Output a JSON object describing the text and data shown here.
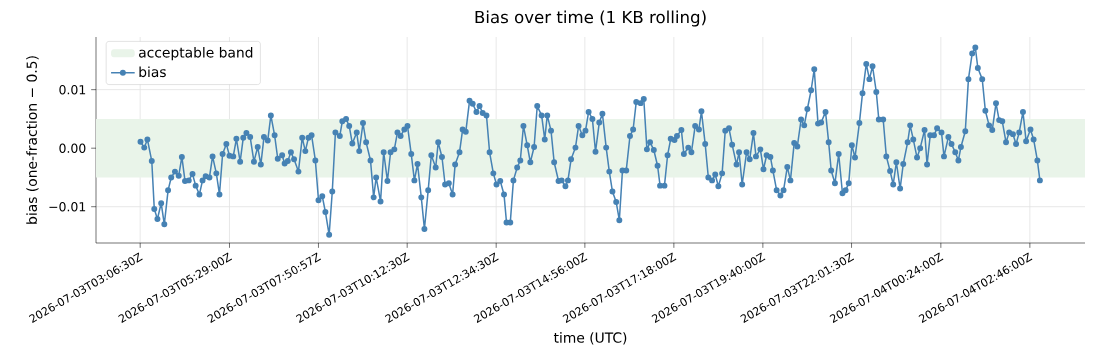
{
  "chart_data": {
    "type": "line",
    "title": "Bias over time (1 KB rolling)",
    "xlabel": "time (UTC)",
    "ylabel": "bias (one-fraction − 0.5)",
    "x": [
      "2026-07-03T03:07",
      "2026-07-03T03:13",
      "2026-07-03T03:18",
      "2026-07-03T03:25",
      "2026-07-03T03:29",
      "2026-07-03T03:34",
      "2026-07-03T03:40",
      "2026-07-03T03:45",
      "2026-07-03T03:51",
      "2026-07-03T03:56",
      "2026-07-03T04:02",
      "2026-07-03T04:08",
      "2026-07-03T04:13",
      "2026-07-03T04:18",
      "2026-07-03T04:24",
      "2026-07-03T04:30",
      "2026-07-03T04:35",
      "2026-07-03T04:41",
      "2026-07-03T04:46",
      "2026-07-03T04:51",
      "2026-07-03T04:57",
      "2026-07-03T05:02",
      "2026-07-03T05:08",
      "2026-07-03T05:13",
      "2026-07-03T05:18",
      "2026-07-03T05:24",
      "2026-07-03T05:29",
      "2026-07-03T05:35",
      "2026-07-03T05:40",
      "2026-07-03T05:46",
      "2026-07-03T05:51",
      "2026-07-03T05:56",
      "2026-07-03T06:02",
      "2026-07-03T06:08",
      "2026-07-03T06:14",
      "2026-07-03T06:19",
      "2026-07-03T06:24",
      "2026-07-03T06:30",
      "2026-07-03T06:35",
      "2026-07-03T06:41",
      "2026-07-03T06:46",
      "2026-07-03T06:53",
      "2026-07-03T06:57",
      "2026-07-03T07:02",
      "2026-07-03T07:07",
      "2026-07-03T07:12",
      "2026-07-03T07:19",
      "2026-07-03T07:25",
      "2026-07-03T07:30",
      "2026-07-03T07:35",
      "2026-07-03T07:40",
      "2026-07-03T07:46",
      "2026-07-03T07:51",
      "2026-07-03T07:57",
      "2026-07-03T08:02",
      "2026-07-03T08:08",
      "2026-07-03T08:13",
      "2026-07-03T08:18",
      "2026-07-03T08:25",
      "2026-07-03T08:29",
      "2026-07-03T08:35",
      "2026-07-03T08:40",
      "2026-07-03T08:45",
      "2026-07-03T08:52",
      "2026-07-03T08:56",
      "2026-07-03T09:02",
      "2026-07-03T09:07",
      "2026-07-03T09:14",
      "2026-07-03T09:19",
      "2026-07-03T09:23",
      "2026-07-03T09:30",
      "2026-07-03T09:35",
      "2026-07-03T09:41",
      "2026-07-03T09:46",
      "2026-07-03T09:52",
      "2026-07-03T09:57",
      "2026-07-03T10:02",
      "2026-07-03T10:08",
      "2026-07-03T10:13",
      "2026-07-03T10:19",
      "2026-07-03T10:24",
      "2026-07-03T10:29",
      "2026-07-03T10:35",
      "2026-07-03T10:40",
      "2026-07-03T10:46",
      "2026-07-03T10:51",
      "2026-07-03T10:58",
      "2026-07-03T11:02",
      "2026-07-03T11:08",
      "2026-07-03T11:13",
      "2026-07-03T11:19",
      "2026-07-03T11:25",
      "2026-07-03T11:29",
      "2026-07-03T11:36",
      "2026-07-03T11:41",
      "2026-07-03T11:46",
      "2026-07-03T11:52",
      "2026-07-03T11:57",
      "2026-07-03T12:03",
      "2026-07-03T12:08",
      "2026-07-03T12:13",
      "2026-07-03T12:19",
      "2026-07-03T12:24",
      "2026-07-03T12:30",
      "2026-07-03T12:35",
      "2026-07-03T12:41",
      "2026-07-03T12:47",
      "2026-07-03T12:51",
      "2026-07-03T12:57",
      "2026-07-03T13:02",
      "2026-07-03T13:08",
      "2026-07-03T13:13",
      "2026-07-03T13:18",
      "2026-07-03T13:24",
      "2026-07-03T13:29",
      "2026-07-03T13:35",
      "2026-07-03T13:40",
      "2026-07-03T13:47",
      "2026-07-03T13:52",
      "2026-07-03T13:56",
      "2026-07-03T14:02",
      "2026-07-03T14:07",
      "2026-07-03T14:14",
      "2026-07-03T14:19",
      "2026-07-03T14:25",
      "2026-07-03T14:29",
      "2026-07-03T14:34",
      "2026-07-03T14:41",
      "2026-07-03T14:46",
      "2026-07-03T14:52",
      "2026-07-03T14:57",
      "2026-07-03T15:02",
      "2026-07-03T15:08",
      "2026-07-03T15:13",
      "2026-07-03T15:19",
      "2026-07-03T15:24",
      "2026-07-03T15:30",
      "2026-07-03T15:35",
      "2026-07-03T15:40",
      "2026-07-03T15:46",
      "2026-07-03T15:51",
      "2026-07-03T15:56",
      "2026-07-03T16:02",
      "2026-07-03T16:08",
      "2026-07-03T16:13",
      "2026-07-03T16:18",
      "2026-07-03T16:25",
      "2026-07-03T16:30",
      "2026-07-03T16:35",
      "2026-07-03T16:40",
      "2026-07-03T16:46",
      "2026-07-03T16:52",
      "2026-07-03T16:56",
      "2026-07-03T17:03",
      "2026-07-03T17:08",
      "2026-07-03T17:13",
      "2026-07-03T17:19",
      "2026-07-03T17:23",
      "2026-07-03T17:30",
      "2026-07-03T17:34",
      "2026-07-03T17:41",
      "2026-07-03T17:46",
      "2026-07-03T17:52",
      "2026-07-03T17:58",
      "2026-07-03T18:02",
      "2026-07-03T18:08",
      "2026-07-03T18:13",
      "2026-07-03T18:19",
      "2026-07-03T18:24",
      "2026-07-03T18:29",
      "2026-07-03T18:35",
      "2026-07-03T18:40",
      "2026-07-03T18:46",
      "2026-07-03T18:51",
      "2026-07-03T18:58",
      "2026-07-03T19:02",
      "2026-07-03T19:07",
      "2026-07-03T19:14",
      "2026-07-03T19:19",
      "2026-07-03T19:25",
      "2026-07-03T19:29",
      "2026-07-03T19:36",
      "2026-07-03T19:41",
      "2026-07-03T19:46",
      "2026-07-03T19:52",
      "2026-07-03T19:56",
      "2026-07-03T20:02",
      "2026-07-03T20:08",
      "2026-07-03T20:13",
      "2026-07-03T20:19",
      "2026-07-03T20:24",
      "2026-07-03T20:30",
      "2026-07-03T20:35",
      "2026-07-03T20:41",
      "2026-07-03T20:46",
      "2026-07-03T20:51",
      "2026-07-03T20:57",
      "2026-07-03T21:02",
      "2026-07-03T21:08",
      "2026-07-03T21:13",
      "2026-07-03T21:20",
      "2026-07-03T21:25",
      "2026-07-03T21:29",
      "2026-07-03T21:35",
      "2026-07-03T21:41",
      "2026-07-03T21:47",
      "2026-07-03T21:52",
      "2026-07-03T21:57",
      "2026-07-03T22:02",
      "2026-07-03T22:07",
      "2026-07-03T22:14",
      "2026-07-03T22:19",
      "2026-07-03T22:25",
      "2026-07-03T22:30",
      "2026-07-03T22:35",
      "2026-07-03T22:41",
      "2026-07-03T22:45",
      "2026-07-03T22:52",
      "2026-07-03T22:57",
      "2026-07-03T23:03",
      "2026-07-03T23:08",
      "2026-07-03T23:13",
      "2026-07-03T23:19",
      "2026-07-03T23:24",
      "2026-07-03T23:31",
      "2026-07-03T23:35",
      "2026-07-03T23:40",
      "2026-07-03T23:46",
      "2026-07-03T23:51",
      "2026-07-03T23:58",
      "2026-07-04T00:02",
      "2026-07-04T00:07",
      "2026-07-04T00:13",
      "2026-07-04T00:18",
      "2026-07-04T00:25",
      "2026-07-04T00:29",
      "2026-07-04T00:36",
      "2026-07-04T00:41",
      "2026-07-04T00:47",
      "2026-07-04T00:52",
      "2026-07-04T00:56",
      "2026-07-04T01:03",
      "2026-07-04T01:08",
      "2026-07-04T01:14",
      "2026-07-04T01:19",
      "2026-07-04T01:23",
      "2026-07-04T01:30",
      "2026-07-04T01:35",
      "2026-07-04T01:41",
      "2026-07-04T01:46",
      "2026-07-04T01:52",
      "2026-07-04T01:57",
      "2026-07-04T02:02",
      "2026-07-04T02:08",
      "2026-07-04T02:13",
      "2026-07-04T02:19",
      "2026-07-04T02:24",
      "2026-07-04T02:29",
      "2026-07-04T02:35",
      "2026-07-04T02:40",
      "2026-07-04T02:47",
      "2026-07-04T02:52",
      "2026-07-04T02:58",
      "2026-07-04T03:02"
    ],
    "series": [
      {
        "name": "bias",
        "color": "#4682b4",
        "values": [
          0.0011,
          0.0001,
          0.0015,
          -0.0022,
          -0.0104,
          -0.0121,
          -0.0094,
          -0.013,
          -0.0072,
          -0.005,
          -0.004,
          -0.0047,
          -0.0015,
          -0.0056,
          -0.0055,
          -0.0044,
          -0.0064,
          -0.0079,
          -0.0055,
          -0.0048,
          -0.005,
          -0.0014,
          -0.0043,
          -0.0079,
          -0.001,
          0.0007,
          -0.0013,
          -0.0014,
          0.0016,
          -0.0023,
          0.0018,
          0.0026,
          0.0019,
          -0.0023,
          0.0002,
          -0.0028,
          0.0019,
          0.0013,
          0.0056,
          0.0022,
          -0.0018,
          -0.0012,
          -0.0026,
          -0.0022,
          -0.0007,
          -0.0019,
          -0.004,
          0.0018,
          -0.0005,
          0.0018,
          0.0022,
          -0.0021,
          -0.0089,
          -0.0082,
          -0.0109,
          -0.0148,
          -0.0074,
          0.0027,
          0.0021,
          0.0046,
          0.005,
          0.0038,
          0.0008,
          0.0027,
          -0.0005,
          0.0043,
          0.001,
          -0.0021,
          -0.0084,
          -0.005,
          -0.0091,
          -0.0007,
          -0.0056,
          -0.0007,
          -0.0002,
          0.0027,
          0.0021,
          0.0032,
          0.0038,
          -0.001,
          -0.0055,
          -0.0027,
          -0.0084,
          -0.0138,
          -0.0072,
          -0.0012,
          -0.0033,
          0.001,
          -0.0015,
          -0.0062,
          -0.006,
          -0.0079,
          -0.0028,
          -0.0007,
          0.0032,
          0.0028,
          0.0081,
          0.0076,
          0.0062,
          0.0072,
          0.006,
          0.0056,
          -0.0007,
          -0.0043,
          -0.0062,
          -0.0056,
          -0.0079,
          -0.0127,
          -0.0127,
          -0.0055,
          -0.0033,
          -0.0021,
          0.0038,
          0.0005,
          -0.0024,
          0.0002,
          0.0072,
          0.0056,
          0.0015,
          0.0056,
          0.003,
          -0.0024,
          -0.0056,
          -0.0055,
          -0.0065,
          -0.0055,
          -0.0019,
          0.0001,
          0.0038,
          0.0022,
          0.003,
          0.0062,
          0.005,
          -0.0006,
          0.0044,
          0.0059,
          0.0001,
          -0.004,
          -0.0074,
          -0.0092,
          -0.0123,
          -0.0038,
          -0.0038,
          0.0021,
          0.0032,
          0.0079,
          0.0077,
          0.0084,
          -0.0002,
          0.001,
          -0.0003,
          -0.003,
          -0.0064,
          -0.0064,
          -0.0012,
          0.0016,
          0.0014,
          0.0021,
          0.0031,
          -0.001,
          0.0001,
          -0.0007,
          0.0038,
          0.0032,
          0.0063,
          0.0007,
          -0.005,
          -0.0055,
          -0.0045,
          -0.0065,
          -0.0043,
          0.003,
          0.0034,
          0.0006,
          -0.0028,
          -0.0007,
          -0.0062,
          -0.0007,
          -0.0019,
          0.0026,
          -0.0014,
          -0.0002,
          -0.0036,
          -0.0012,
          -0.0015,
          -0.0038,
          -0.0072,
          -0.0081,
          -0.0072,
          -0.0032,
          -0.0055,
          0.0009,
          0.0003,
          0.0049,
          0.0039,
          0.0067,
          0.0099,
          0.0135,
          0.0042,
          0.0044,
          0.0062,
          0.001,
          -0.0038,
          -0.006,
          -0.001,
          -0.0077,
          -0.0072,
          -0.006,
          0.0005,
          -0.0016,
          0.0043,
          0.0094,
          0.0144,
          0.0118,
          0.014,
          0.0096,
          0.0049,
          0.0049,
          -0.0014,
          -0.0039,
          -0.0062,
          -0.0024,
          -0.0069,
          -0.0027,
          0.001,
          0.0039,
          0.0015,
          -0.0016,
          0.0,
          0.0031,
          -0.0028,
          0.0022,
          0.0022,
          0.0034,
          0.0027,
          -0.0014,
          0.0019,
          0.0007,
          -0.0007,
          -0.0021,
          0.0002,
          0.0029,
          0.0118,
          0.0162,
          0.0172,
          0.0137,
          0.0118,
          0.0064,
          0.0039,
          0.0031,
          0.0077,
          0.0048,
          0.0046,
          0.001,
          0.0027,
          0.0024,
          0.0007,
          0.0027,
          0.0062,
          0.0012,
          0.0032,
          0.0015,
          -0.0021,
          -0.0055
        ]
      }
    ],
    "bands": [
      {
        "axis": "y",
        "from": -0.005,
        "to": 0.005,
        "label": "acceptable band",
        "color": "#e9f4e9"
      }
    ],
    "xlim": [
      "2026-07-03T01:56",
      "2026-07-04T04:14"
    ],
    "ylim": [
      -0.0162,
      0.019
    ],
    "xticks": [
      {
        "value": "2026-07-03T03:06:30",
        "label": "2026-07-03T03:06:30Z"
      },
      {
        "value": "2026-07-03T05:29:00",
        "label": "2026-07-03T05:29:00Z"
      },
      {
        "value": "2026-07-03T07:50:57",
        "label": "2026-07-03T07:50:57Z"
      },
      {
        "value": "2026-07-03T10:12:30",
        "label": "2026-07-03T10:12:30Z"
      },
      {
        "value": "2026-07-03T12:34:30",
        "label": "2026-07-03T12:34:30Z"
      },
      {
        "value": "2026-07-03T14:56:00",
        "label": "2026-07-03T14:56:00Z"
      },
      {
        "value": "2026-07-03T17:18:00",
        "label": "2026-07-03T17:18:00Z"
      },
      {
        "value": "2026-07-03T19:40:00",
        "label": "2026-07-03T19:40:00Z"
      },
      {
        "value": "2026-07-03T22:01:30",
        "label": "2026-07-03T22:01:30Z"
      },
      {
        "value": "2026-07-04T00:24:00",
        "label": "2026-07-04T00:24:00Z"
      },
      {
        "value": "2026-07-04T02:46:00",
        "label": "2026-07-04T02:46:00Z"
      }
    ],
    "yticks": [
      {
        "value": -0.01,
        "label": "−0.01"
      },
      {
        "value": 0,
        "label": "0.00"
      },
      {
        "value": 0.01,
        "label": "0.01"
      }
    ],
    "grid": true,
    "legend": "top left",
    "marker": "circle"
  }
}
